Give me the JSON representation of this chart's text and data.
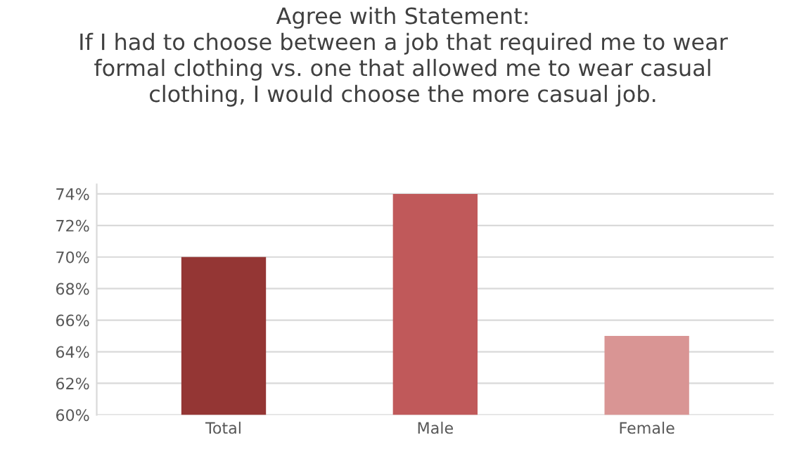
{
  "chart_data": {
    "type": "bar",
    "title": "Agree with Statement:\nIf I had to choose between a job that required me to wear\nformal clothing vs. one that allowed me to wear casual\nclothing, I would choose the more casual job.",
    "categories": [
      "Total",
      "Male",
      "Female"
    ],
    "values": [
      70,
      74,
      65
    ],
    "colors": [
      "#943634",
      "#c0595a",
      "#d99594"
    ],
    "ylim": [
      60,
      74.6
    ],
    "yticks": [
      {
        "value": 60,
        "label": "60%"
      },
      {
        "value": 62,
        "label": "62%"
      },
      {
        "value": 64,
        "label": "64%"
      },
      {
        "value": 66,
        "label": "66%"
      },
      {
        "value": 68,
        "label": "68%"
      },
      {
        "value": 70,
        "label": "70%"
      },
      {
        "value": 72,
        "label": "72%"
      },
      {
        "value": 74,
        "label": "74%"
      }
    ],
    "grid": "y"
  }
}
